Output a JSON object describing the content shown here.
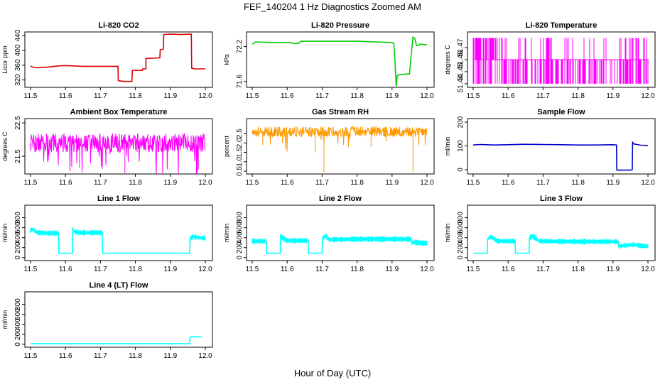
{
  "figure": {
    "title": "FEF_140204  1 Hz Diagnostics Zoomed AM",
    "xlabel": "Hour of Day (UTC)"
  },
  "chart_data": [
    {
      "type": "line",
      "title": "Li-820 CO2",
      "ylabel": "Licor ppm",
      "color": "#dd0000",
      "xlim": [
        11.5,
        12.0
      ],
      "ylim": [
        300,
        450
      ],
      "xticks": [
        "11.5",
        "11.6",
        "11.7",
        "11.8",
        "11.9",
        "12.0"
      ],
      "yticks": [
        {
          "v": 320,
          "label": "320"
        },
        {
          "v": 360,
          "label": "360"
        },
        {
          "v": 400,
          "label": "400"
        },
        {
          "v": 440,
          "label": "440"
        }
      ],
      "series": [
        {
          "x": [
            11.5,
            11.505,
            11.52,
            11.55,
            11.58,
            11.6,
            11.65,
            11.7,
            11.75,
            11.751,
            11.76,
            11.77,
            11.79,
            11.791,
            11.82,
            11.821,
            11.83,
            11.83,
            11.85,
            11.87,
            11.871,
            11.875,
            11.88,
            11.881,
            11.9,
            11.93,
            11.96,
            11.961,
            11.97,
            11.99,
            12.0
          ],
          "y": [
            358,
            355,
            353,
            355,
            358,
            359,
            357,
            357,
            357,
            318,
            317,
            316,
            316,
            346,
            346,
            350,
            350,
            378,
            379,
            380,
            402,
            402,
            404,
            443,
            444,
            443,
            444,
            352,
            350,
            350,
            350
          ]
        }
      ],
      "noise": 0
    },
    {
      "type": "line",
      "title": "Li-820 Pressure",
      "ylabel": "kPa",
      "color": "#00cc00",
      "xlim": [
        11.5,
        12.0
      ],
      "ylim": [
        71.5,
        72.45
      ],
      "xticks": [
        "11.5",
        "11.6",
        "11.7",
        "11.8",
        "11.9",
        "12.0"
      ],
      "yticks": [
        {
          "v": 71.6,
          "label": "71.6"
        },
        {
          "v": 72.2,
          "label": "72.2"
        }
      ],
      "series": [
        {
          "x": [
            11.5,
            11.51,
            11.55,
            11.6,
            11.63,
            11.64,
            11.7,
            11.8,
            11.85,
            11.9,
            11.905,
            11.908,
            11.912,
            11.915,
            11.92,
            11.95,
            11.955,
            11.96,
            11.965,
            11.97,
            11.975,
            11.98,
            12.0
          ],
          "y": [
            72.24,
            72.28,
            72.27,
            72.27,
            72.25,
            72.29,
            72.29,
            72.29,
            72.28,
            72.27,
            72.25,
            72.0,
            71.52,
            71.7,
            71.72,
            71.73,
            72.07,
            72.36,
            72.34,
            72.22,
            72.22,
            72.24,
            72.23
          ]
        }
      ],
      "noise": 0
    },
    {
      "type": "line",
      "title": "Li-820 Temperature",
      "ylabel": "degrees C",
      "color": "#ff00ff",
      "xlim": [
        11.5,
        12.0
      ],
      "ylim": [
        51.437,
        51.483
      ],
      "xticks": [
        "11.5",
        "11.6",
        "11.7",
        "11.8",
        "11.9",
        "12.0"
      ],
      "yticks": [
        {
          "v": 51.44,
          "label": "51.44"
        },
        {
          "v": 51.45,
          "label": "51.45"
        },
        {
          "v": 51.46,
          "label": "51.46"
        },
        {
          "v": 51.47,
          "label": "51.47"
        }
      ],
      "series": [
        {
          "x": [
            11.5,
            12.0
          ],
          "y": [
            51.445,
            51.46
          ]
        }
      ],
      "noise": 0
    },
    {
      "type": "line",
      "title": "Ambient Box Temperature",
      "ylabel": "degrees C",
      "color": "#ff00ff",
      "xlim": [
        11.5,
        12.0
      ],
      "ylim": [
        20.97,
        22.63
      ],
      "xticks": [
        "11.5",
        "11.6",
        "11.7",
        "11.8",
        "11.9",
        "12.0"
      ],
      "yticks": [
        {
          "v": 21.5,
          "label": "21.5"
        },
        {
          "v": 22.5,
          "label": "22.5"
        }
      ],
      "series": [
        {
          "x": [
            11.5,
            12.0
          ],
          "y": [
            21.9,
            21.9
          ]
        }
      ],
      "noise": 0.28
    },
    {
      "type": "line",
      "title": "Gas Stream RH",
      "ylabel": "percent",
      "color": "#ff9900",
      "xlim": [
        11.5,
        12.0
      ],
      "ylim": [
        0.35,
        3.3
      ],
      "xticks": [
        "11.5",
        "11.6",
        "11.7",
        "11.8",
        "11.9",
        "12.0"
      ],
      "yticks": [
        {
          "v": 0.5,
          "label": "0.5"
        },
        {
          "v": 1.0,
          "label": "1.0"
        },
        {
          "v": 1.5,
          "label": "1.5"
        },
        {
          "v": 2.0,
          "label": "2.0"
        },
        {
          "v": 2.5,
          "label": "2.5"
        }
      ],
      "series": [
        {
          "x": [
            11.5,
            12.0
          ],
          "y": [
            2.6,
            2.6
          ]
        }
      ],
      "noise": 0.28
    },
    {
      "type": "line",
      "title": "Sample Flow",
      "ylabel": "ml/min",
      "color": "#0000cc",
      "xlim": [
        11.5,
        12.0
      ],
      "ylim": [
        -18,
        215
      ],
      "xticks": [
        "11.5",
        "11.6",
        "11.7",
        "11.8",
        "11.9",
        "12.0"
      ],
      "yticks": [
        {
          "v": 0,
          "label": "0"
        },
        {
          "v": 100,
          "label": "100"
        },
        {
          "v": 200,
          "label": "200"
        }
      ],
      "series": [
        {
          "x": [
            11.5,
            11.52,
            11.56,
            11.6,
            11.64,
            11.7,
            11.75,
            11.8,
            11.85,
            11.9,
            11.91,
            11.911,
            11.95,
            11.955,
            11.956,
            11.96,
            11.98,
            12.0
          ],
          "y": [
            104,
            106,
            104,
            105,
            107,
            106,
            105,
            104,
            104,
            105,
            104,
            -2,
            -2,
            0,
            115,
            108,
            103,
            102
          ]
        }
      ],
      "noise": 0
    },
    {
      "type": "line",
      "title": "Line 1 Flow",
      "ylabel": "ml/min",
      "color": "#00ffff",
      "xlim": [
        11.5,
        12.0
      ],
      "ylim": [
        -60,
        1050
      ],
      "xticks": [
        "11.5",
        "11.6",
        "11.7",
        "11.8",
        "11.9",
        "12.0"
      ],
      "yticks": [
        {
          "v": 0,
          "label": "0"
        },
        {
          "v": 200,
          "label": "200"
        },
        {
          "v": 400,
          "label": "400"
        },
        {
          "v": 600,
          "label": "600"
        },
        {
          "v": 800,
          "label": "800"
        }
      ],
      "series": [
        {
          "x": [
            11.5,
            11.505,
            11.52,
            11.55,
            11.58,
            11.581,
            11.62,
            11.621,
            11.625,
            11.64,
            11.7,
            11.705,
            11.706,
            11.8,
            11.9,
            11.955,
            11.956,
            11.965,
            11.99
          ],
          "y": [
            540,
            570,
            500,
            490,
            490,
            90,
            90,
            570,
            520,
            500,
            500,
            500,
            90,
            90,
            90,
            90,
            380,
            420,
            390
          ]
        }
      ],
      "noise": 0
    },
    {
      "type": "line",
      "title": "Line 2 Flow",
      "ylabel": "ml/min",
      "color": "#00ffff",
      "xlim": [
        11.5,
        12.0
      ],
      "ylim": [
        -60,
        1050
      ],
      "xticks": [
        "11.5",
        "11.6",
        "11.7",
        "11.8",
        "11.9",
        "12.0"
      ],
      "yticks": [
        {
          "v": 0,
          "label": "0"
        },
        {
          "v": 200,
          "label": "200"
        },
        {
          "v": 400,
          "label": "400"
        },
        {
          "v": 600,
          "label": "600"
        },
        {
          "v": 800,
          "label": "800"
        }
      ],
      "series": [
        {
          "x": [
            11.5,
            11.54,
            11.541,
            11.58,
            11.581,
            11.59,
            11.6,
            11.66,
            11.661,
            11.7,
            11.701,
            11.71,
            11.72,
            11.8,
            11.9,
            11.955,
            11.956,
            11.96,
            11.99
          ],
          "y": [
            330,
            330,
            90,
            90,
            430,
            380,
            340,
            340,
            90,
            90,
            380,
            440,
            360,
            370,
            370,
            370,
            290,
            310,
            290
          ]
        }
      ],
      "noise": 0
    },
    {
      "type": "line",
      "title": "Line 3 Flow",
      "ylabel": "ml/min",
      "color": "#00ffff",
      "xlim": [
        11.5,
        12.0
      ],
      "ylim": [
        -60,
        1050
      ],
      "xticks": [
        "11.5",
        "11.6",
        "11.7",
        "11.8",
        "11.9",
        "12.0"
      ],
      "yticks": [
        {
          "v": 0,
          "label": "0"
        },
        {
          "v": 200,
          "label": "200"
        },
        {
          "v": 400,
          "label": "400"
        },
        {
          "v": 600,
          "label": "600"
        },
        {
          "v": 800,
          "label": "800"
        }
      ],
      "series": [
        {
          "x": [
            11.5,
            11.54,
            11.541,
            11.55,
            11.57,
            11.62,
            11.621,
            11.66,
            11.661,
            11.67,
            11.69,
            11.8,
            11.9,
            11.915,
            11.916,
            11.96,
            11.99
          ],
          "y": [
            90,
            90,
            370,
            420,
            330,
            330,
            90,
            90,
            400,
            430,
            330,
            320,
            320,
            320,
            230,
            260,
            230
          ]
        }
      ],
      "noise": 0
    },
    {
      "type": "line",
      "title": "Line 4 (LT) Flow",
      "ylabel": "ml/min",
      "color": "#00ffff",
      "xlim": [
        11.5,
        12.0
      ],
      "ylim": [
        -60,
        1050
      ],
      "xticks": [
        "11.5",
        "11.6",
        "11.7",
        "11.8",
        "11.9",
        "12.0"
      ],
      "yticks": [
        {
          "v": 0,
          "label": "0"
        },
        {
          "v": 200,
          "label": "200"
        },
        {
          "v": 400,
          "label": "400"
        },
        {
          "v": 600,
          "label": "600"
        },
        {
          "v": 800,
          "label": "800"
        }
      ],
      "series": [
        {
          "x": [
            11.5,
            11.6,
            11.7,
            11.8,
            11.9,
            11.955,
            11.956,
            11.96,
            11.99
          ],
          "y": [
            10,
            10,
            10,
            10,
            10,
            10,
            130,
            150,
            145
          ]
        }
      ],
      "noise": 0
    }
  ]
}
